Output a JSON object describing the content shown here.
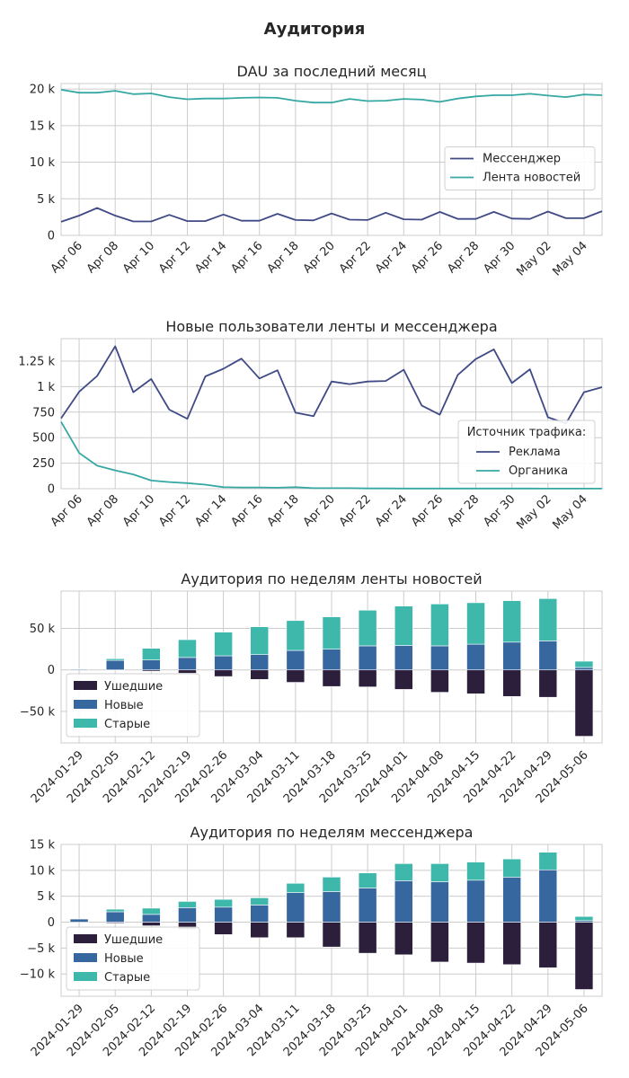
{
  "figure_title": "Аудитория",
  "colors": {
    "dark_blue": "#3f4a86",
    "teal": "#36a8a4",
    "departed": "#2b1f3c",
    "new": "#37679f",
    "old": "#3fb8ac",
    "grid": "#cccccc"
  },
  "chart_data": [
    {
      "type": "line",
      "title": "DAU за последний месяц",
      "xlabel": "",
      "ylabel": "",
      "x": [
        "2024-04-05",
        "2024-04-06",
        "2024-04-07",
        "2024-04-08",
        "2024-04-09",
        "2024-04-10",
        "2024-04-11",
        "2024-04-12",
        "2024-04-13",
        "2024-04-14",
        "2024-04-15",
        "2024-04-16",
        "2024-04-17",
        "2024-04-18",
        "2024-04-19",
        "2024-04-20",
        "2024-04-21",
        "2024-04-22",
        "2024-04-23",
        "2024-04-24",
        "2024-04-25",
        "2024-04-26",
        "2024-04-27",
        "2024-04-28",
        "2024-04-29",
        "2024-04-30",
        "2024-05-01",
        "2024-05-02",
        "2024-05-03",
        "2024-05-04",
        "2024-05-05"
      ],
      "xticks": [
        "Apr 06",
        "Apr 08",
        "Apr 10",
        "Apr 12",
        "Apr 14",
        "Apr 16",
        "Apr 18",
        "Apr 20",
        "Apr 22",
        "Apr 24",
        "Apr 26",
        "Apr 28",
        "Apr 30",
        "May 02",
        "May 04"
      ],
      "yticks": [
        "0",
        "5 k",
        "10 k",
        "15 k",
        "20 k"
      ],
      "ytick_values": [
        0,
        5000,
        10000,
        15000,
        20000
      ],
      "ylim": [
        0,
        20750
      ],
      "legend_title": "",
      "legend_position": "center-right",
      "series": [
        {
          "name": "Мессенджер",
          "color_key": "dark_blue",
          "values": [
            1850,
            2700,
            3750,
            2700,
            1900,
            1900,
            2800,
            1950,
            1950,
            2850,
            2000,
            2000,
            2950,
            2100,
            2050,
            3000,
            2150,
            2100,
            3100,
            2200,
            2150,
            3200,
            2250,
            2250,
            3200,
            2300,
            2250,
            3250,
            2350,
            2350,
            3300
          ]
        },
        {
          "name": "Лента новостей",
          "color_key": "teal",
          "values": [
            19900,
            19500,
            19500,
            19750,
            19300,
            19400,
            18900,
            18600,
            18700,
            18700,
            18800,
            18850,
            18800,
            18400,
            18150,
            18150,
            18650,
            18350,
            18400,
            18650,
            18550,
            18250,
            18700,
            19000,
            19150,
            19150,
            19350,
            19100,
            18900,
            19250,
            19150
          ]
        }
      ]
    },
    {
      "type": "line",
      "title": "Новые пользователи ленты и мессенджера",
      "xlabel": "",
      "ylabel": "",
      "x": [
        "2024-04-05",
        "2024-04-06",
        "2024-04-07",
        "2024-04-08",
        "2024-04-09",
        "2024-04-10",
        "2024-04-11",
        "2024-04-12",
        "2024-04-13",
        "2024-04-14",
        "2024-04-15",
        "2024-04-16",
        "2024-04-17",
        "2024-04-18",
        "2024-04-19",
        "2024-04-20",
        "2024-04-21",
        "2024-04-22",
        "2024-04-23",
        "2024-04-24",
        "2024-04-25",
        "2024-04-26",
        "2024-04-27",
        "2024-04-28",
        "2024-04-29",
        "2024-04-30",
        "2024-05-01",
        "2024-05-02",
        "2024-05-03",
        "2024-05-04",
        "2024-05-05"
      ],
      "xticks": [
        "Apr 06",
        "Apr 08",
        "Apr 10",
        "Apr 12",
        "Apr 14",
        "Apr 16",
        "Apr 18",
        "Apr 20",
        "Apr 22",
        "Apr 24",
        "Apr 26",
        "Apr 28",
        "Apr 30",
        "May 02",
        "May 04"
      ],
      "yticks": [
        "0",
        "250",
        "500",
        "750",
        "1 k",
        "1.25 k"
      ],
      "ytick_values": [
        0,
        250,
        500,
        750,
        1000,
        1250
      ],
      "ylim": [
        0,
        1470
      ],
      "legend_title": "Источник трафика:",
      "legend_position": "lower-right",
      "series": [
        {
          "name": "Реклама",
          "color_key": "dark_blue",
          "values": [
            690,
            950,
            1105,
            1395,
            945,
            1075,
            775,
            685,
            1100,
            1175,
            1275,
            1080,
            1160,
            745,
            710,
            1050,
            1025,
            1050,
            1055,
            1165,
            815,
            725,
            1115,
            1270,
            1365,
            1035,
            1170,
            700,
            640,
            945,
            995
          ]
        },
        {
          "name": "Органика",
          "color_key": "teal",
          "values": [
            655,
            350,
            225,
            180,
            140,
            80,
            65,
            55,
            40,
            15,
            12,
            12,
            10,
            15,
            5,
            5,
            5,
            3,
            3,
            2,
            2,
            2,
            2,
            2,
            2,
            2,
            2,
            1,
            1,
            1,
            1
          ]
        }
      ]
    },
    {
      "type": "bar",
      "stacked": true,
      "title": "Аудитория по неделям ленты новостей",
      "xlabel": "",
      "ylabel": "",
      "categories": [
        "2024-01-29",
        "2024-02-05",
        "2024-02-12",
        "2024-02-19",
        "2024-02-26",
        "2024-03-04",
        "2024-03-11",
        "2024-03-18",
        "2024-03-25",
        "2024-04-01",
        "2024-04-08",
        "2024-04-15",
        "2024-04-22",
        "2024-04-29",
        "2024-05-06"
      ],
      "yticks": [
        "−50 k",
        "0",
        "50 k"
      ],
      "ytick_values": [
        -50000,
        0,
        50000
      ],
      "ylim": [
        -88000,
        95000
      ],
      "legend_position": "lower-left",
      "series": [
        {
          "name": "Ушедшие",
          "color_key": "departed",
          "values": [
            0,
            -500,
            -1500,
            -4000,
            -8000,
            -11500,
            -15000,
            -20000,
            -20500,
            -23500,
            -27000,
            -28800,
            -32000,
            -33000,
            -80000
          ]
        },
        {
          "name": "Новые",
          "color_key": "new",
          "values": [
            1000,
            11500,
            12000,
            15000,
            17000,
            18500,
            23500,
            25000,
            29000,
            29500,
            29000,
            31000,
            33500,
            35000,
            3000
          ]
        },
        {
          "name": "Старые",
          "color_key": "old",
          "values": [
            0,
            2000,
            14000,
            21500,
            28500,
            33500,
            36000,
            39000,
            43000,
            47500,
            50500,
            50000,
            50000,
            51000,
            7500
          ]
        }
      ]
    },
    {
      "type": "bar",
      "stacked": true,
      "title": "Аудитория по неделям мессенджера",
      "xlabel": "",
      "ylabel": "",
      "categories": [
        "2024-01-29",
        "2024-02-05",
        "2024-02-12",
        "2024-02-19",
        "2024-02-26",
        "2024-03-04",
        "2024-03-11",
        "2024-03-18",
        "2024-03-25",
        "2024-04-01",
        "2024-04-08",
        "2024-04-15",
        "2024-04-22",
        "2024-04-29",
        "2024-05-06"
      ],
      "yticks": [
        "−10 k",
        "−5 k",
        "0",
        "5 k",
        "10 k",
        "15 k"
      ],
      "ytick_values": [
        -10000,
        -5000,
        0,
        5000,
        10000,
        15000
      ],
      "ylim": [
        -14300,
        15000
      ],
      "legend_position": "lower-left",
      "series": [
        {
          "name": "Ушедшие",
          "color_key": "departed",
          "values": [
            0,
            -200,
            -700,
            -1400,
            -2400,
            -3000,
            -3000,
            -4800,
            -6000,
            -6300,
            -7700,
            -7900,
            -8200,
            -8800,
            -13000
          ]
        },
        {
          "name": "Новые",
          "color_key": "new",
          "values": [
            600,
            2000,
            1500,
            2800,
            2900,
            3300,
            5700,
            5900,
            6600,
            8000,
            7800,
            8100,
            8700,
            10100,
            300
          ]
        },
        {
          "name": "Старые",
          "color_key": "old",
          "values": [
            0,
            500,
            1200,
            1200,
            1500,
            1400,
            1800,
            2800,
            2900,
            3300,
            3500,
            3500,
            3500,
            3400,
            800
          ]
        }
      ]
    }
  ]
}
